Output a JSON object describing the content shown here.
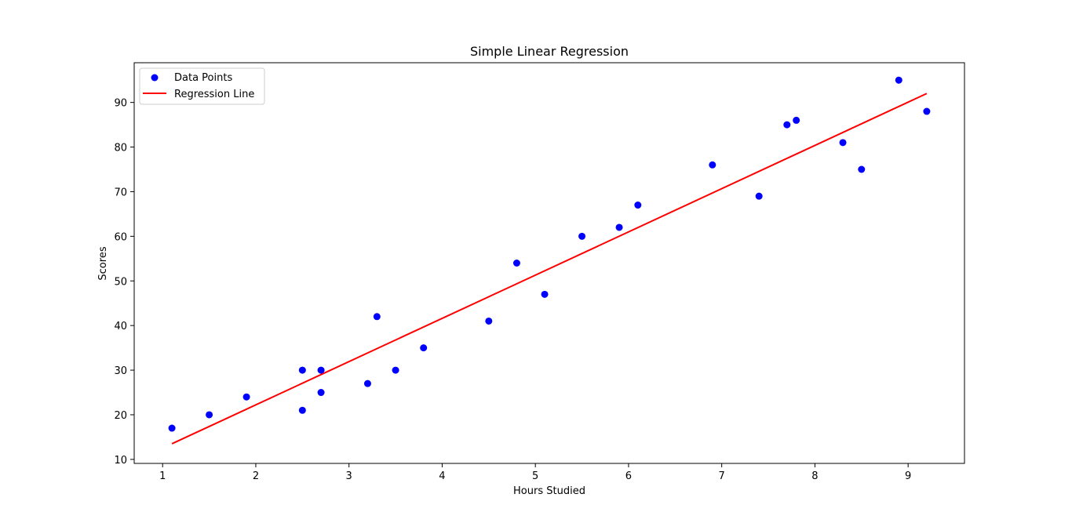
{
  "chart_data": {
    "type": "scatter",
    "title": "Simple Linear Regression",
    "xlabel": "Hours Studied",
    "ylabel": "Scores",
    "xlim": [
      0.695,
      9.605
    ],
    "ylim": [
      9.1,
      98.9
    ],
    "xticks": [
      1,
      2,
      3,
      4,
      5,
      6,
      7,
      8,
      9
    ],
    "yticks": [
      10,
      20,
      30,
      40,
      50,
      60,
      70,
      80,
      90
    ],
    "grid": false,
    "legend_position": "top-left",
    "series": [
      {
        "name": "Data Points",
        "kind": "scatter",
        "color": "#0000ff",
        "points": [
          [
            2.5,
            21
          ],
          [
            5.1,
            47
          ],
          [
            3.2,
            27
          ],
          [
            8.5,
            75
          ],
          [
            3.5,
            30
          ],
          [
            1.5,
            20
          ],
          [
            9.2,
            88
          ],
          [
            5.5,
            60
          ],
          [
            8.3,
            81
          ],
          [
            2.7,
            25
          ],
          [
            7.7,
            85
          ],
          [
            5.9,
            62
          ],
          [
            4.5,
            41
          ],
          [
            3.3,
            42
          ],
          [
            1.1,
            17
          ],
          [
            8.9,
            95
          ],
          [
            2.5,
            30
          ],
          [
            1.9,
            24
          ],
          [
            6.1,
            67
          ],
          [
            7.4,
            69
          ],
          [
            2.7,
            30
          ],
          [
            4.8,
            54
          ],
          [
            3.8,
            35
          ],
          [
            6.9,
            76
          ],
          [
            7.8,
            86
          ]
        ]
      },
      {
        "name": "Regression Line",
        "kind": "line",
        "color": "#ff0000",
        "points": [
          [
            1.1,
            13.5
          ],
          [
            9.2,
            92.0
          ]
        ]
      }
    ]
  }
}
